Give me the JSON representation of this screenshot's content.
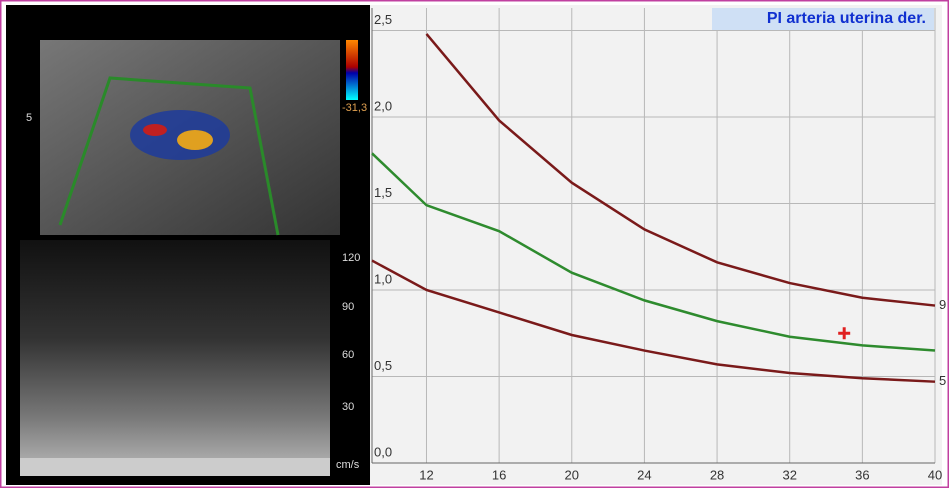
{
  "ultrasound": {
    "depth_label": "5",
    "color_scale_label": "-31,3",
    "velocity_labels": [
      "120",
      "90",
      "60",
      "30"
    ],
    "unit": "cm/s"
  },
  "chart_data": {
    "type": "line",
    "title": "PI arteria uterina der.",
    "x": [
      9,
      12,
      16,
      20,
      24,
      28,
      32,
      36,
      40
    ],
    "series": [
      {
        "name": "9",
        "color": "#7a1a1a",
        "values": [
          null,
          2.48,
          1.98,
          1.62,
          1.35,
          1.16,
          1.04,
          0.955,
          0.91
        ]
      },
      {
        "color": "#2e8b2e",
        "values": [
          1.79,
          1.49,
          1.34,
          1.1,
          0.94,
          0.82,
          0.73,
          0.68,
          0.65
        ]
      },
      {
        "name": "5",
        "color": "#7a1a1a",
        "values": [
          1.17,
          1.0,
          0.87,
          0.74,
          0.65,
          0.57,
          0.52,
          0.49,
          0.47
        ]
      }
    ],
    "measurement": {
      "x": 35,
      "y": 0.75,
      "color": "#e02020"
    },
    "xlim": [
      9,
      40
    ],
    "ylim": [
      0,
      2.63
    ],
    "xticks": [
      12,
      16,
      20,
      24,
      28,
      32,
      36,
      40
    ],
    "yticks": [
      {
        "value": 0,
        "label": "0,0"
      },
      {
        "value": 0.5,
        "label": "0,5"
      },
      {
        "value": 1,
        "label": "1,0"
      },
      {
        "value": 1.5,
        "label": "1,5"
      },
      {
        "value": 2,
        "label": "2,0"
      },
      {
        "value": 2.5,
        "label": "2,5"
      }
    ],
    "grid": true
  }
}
